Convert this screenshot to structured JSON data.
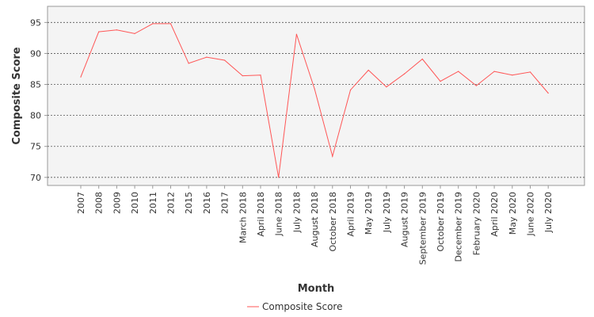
{
  "chart_data": {
    "type": "line",
    "title": "",
    "xlabel": "Month",
    "ylabel": "Composite Score",
    "ylim": [
      68.7,
      97.6
    ],
    "yticks": [
      70,
      75,
      80,
      85,
      90,
      95
    ],
    "grid": true,
    "legend_position": "bottom-center",
    "categories": [
      "2007",
      "2008",
      "2009",
      "2010",
      "2011",
      "2012",
      "2015",
      "2016",
      "2017",
      "March 2018",
      "April 2018",
      "June 2018",
      "July 2018",
      "August 2018",
      "October 2018",
      "April 2019",
      "May 2019",
      "July 2019",
      "August 2019",
      "September 2019",
      "October 2019",
      "December 2019",
      "February 2020",
      "April 2020",
      "May 2020",
      "June 2020",
      "July 2020"
    ],
    "series": [
      {
        "name": "Composite Score",
        "color": "#ff5555",
        "values": [
          86.2,
          93.5,
          93.8,
          93.2,
          94.8,
          94.8,
          88.4,
          89.4,
          88.9,
          86.4,
          86.5,
          70.0,
          93.1,
          84.3,
          73.4,
          84.1,
          87.3,
          84.6,
          86.7,
          89.1,
          85.5,
          87.1,
          84.8,
          87.1,
          86.5,
          87.0,
          83.6
        ]
      }
    ]
  },
  "colors": {
    "plot_background": "#f4f4f4",
    "grid": "#555555",
    "axis": "#999999"
  }
}
